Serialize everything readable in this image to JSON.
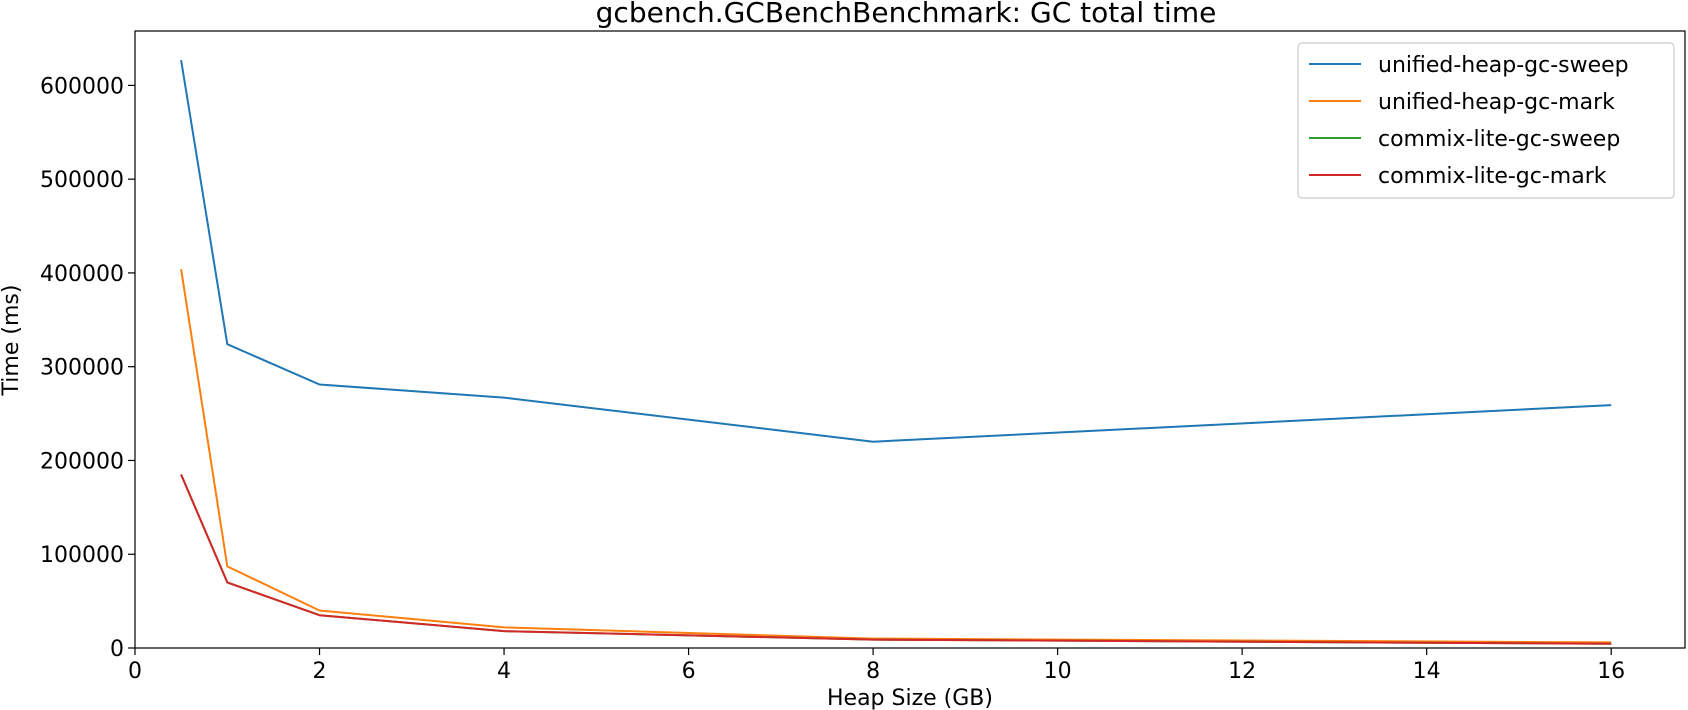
{
  "chart_data": {
    "type": "line",
    "title": "gcbench.GCBenchBenchmark: GC total time",
    "xlabel": "Heap Size (GB)",
    "ylabel": "Time (ms)",
    "xlim": [
      0,
      16.8
    ],
    "ylim": [
      0,
      658000
    ],
    "xticks": [
      0,
      2,
      4,
      6,
      8,
      10,
      12,
      14,
      16
    ],
    "yticks": [
      0,
      100000,
      200000,
      300000,
      400000,
      500000,
      600000
    ],
    "legend_position": "top-right",
    "grid": false,
    "x": [
      0.5,
      1,
      2,
      4,
      8,
      16
    ],
    "series": [
      {
        "name": "unified-heap-gc-sweep",
        "color": "#1f77b4",
        "values": [
          627000,
          324000,
          281000,
          267000,
          220000,
          259000
        ]
      },
      {
        "name": "unified-heap-gc-mark",
        "color": "#ff7f0e",
        "values": [
          404000,
          87000,
          40000,
          22000,
          10000,
          6000
        ]
      },
      {
        "name": "commix-lite-gc-sweep",
        "color": "#2ca02c",
        "values": [
          185000,
          70000,
          35000,
          18000,
          9000,
          4500
        ]
      },
      {
        "name": "commix-lite-gc-mark",
        "color": "#d62728",
        "values": [
          185000,
          70000,
          35000,
          18000,
          9000,
          4500
        ]
      }
    ]
  }
}
